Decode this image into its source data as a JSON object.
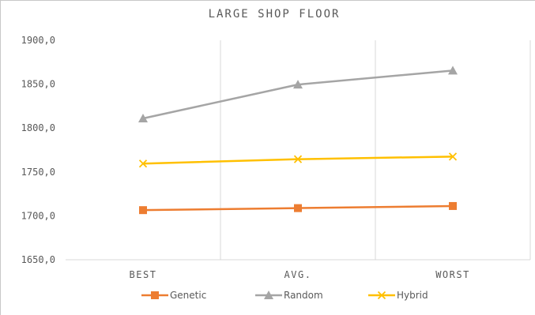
{
  "chart_data": {
    "type": "line",
    "title": "LARGE SHOP FLOOR",
    "categories": [
      "BEST",
      "AVG.",
      "WORST"
    ],
    "series": [
      {
        "name": "Genetic",
        "values": [
          1706.5,
          1708.8,
          1711.2
        ],
        "color": "#ed7d31",
        "marker": "square"
      },
      {
        "name": "Random",
        "values": [
          1811.0,
          1849.5,
          1865.5
        ],
        "color": "#a5a5a5",
        "marker": "triangle"
      },
      {
        "name": "Hybrid",
        "values": [
          1759.5,
          1764.5,
          1767.5
        ],
        "color": "#ffc000",
        "marker": "x"
      }
    ],
    "ylim": [
      1650,
      1900
    ],
    "yticks": [
      1650,
      1700,
      1750,
      1800,
      1850,
      1900
    ],
    "ytick_labels": [
      "1650,0",
      "1700,0",
      "1750,0",
      "1800,0",
      "1850,0",
      "1900,0"
    ],
    "grid": "vertical",
    "legend": "bottom",
    "xlabel": "",
    "ylabel": ""
  }
}
